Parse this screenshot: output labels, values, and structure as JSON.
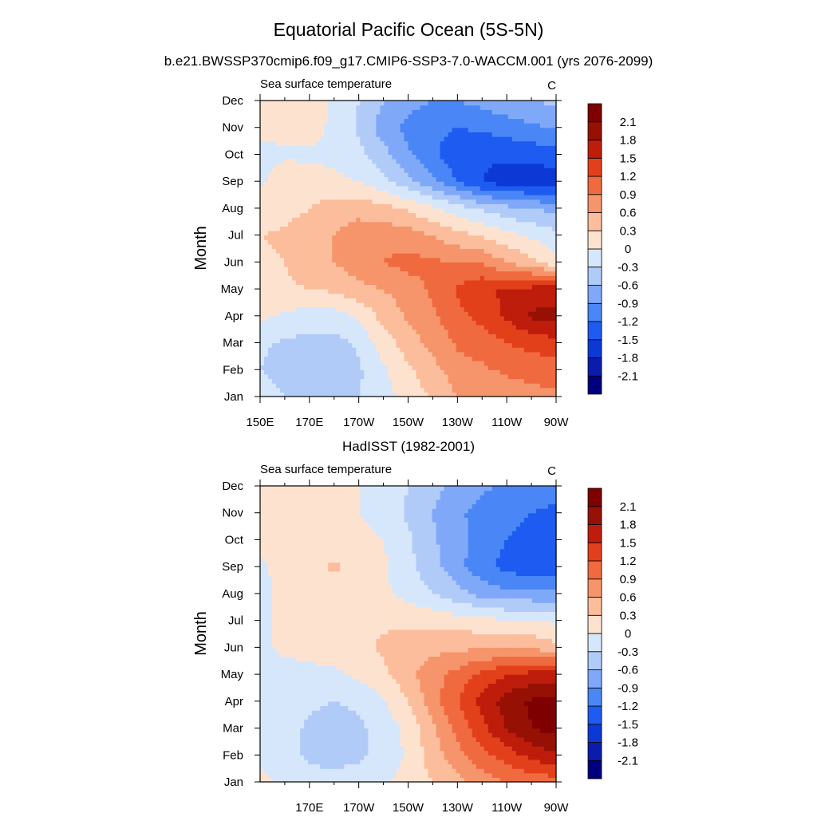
{
  "figure": {
    "title": "Equatorial Pacific Ocean (5S-5N)",
    "subtitle": "b.e21.BWSSP370cmip6.f09_g17.CMIP6-SSP3-7.0-WACCM.001 (yrs 2076-2099)"
  },
  "colormap": {
    "levels": [
      -2.1,
      -1.8,
      -1.5,
      -1.2,
      -0.9,
      -0.6,
      -0.3,
      0,
      0.3,
      0.6,
      0.9,
      1.2,
      1.5,
      1.8,
      2.1
    ],
    "level_labels": [
      "-2.1",
      "-1.8",
      "-1.5",
      "-1.2",
      "-0.9",
      "-0.6",
      "-0.3",
      "0",
      "0.3",
      "0.6",
      "0.9",
      "1.2",
      "1.5",
      "1.8",
      "2.1"
    ],
    "colors": [
      "#00007f",
      "#0a1cae",
      "#0c38d6",
      "#1e5bf0",
      "#4a86f5",
      "#7fa9f8",
      "#b1cbf8",
      "#d6e7fb",
      "#fde3cf",
      "#fbbd9b",
      "#f6946b",
      "#f06a3f",
      "#e2401b",
      "#bd1d0a",
      "#961004",
      "#7f0000"
    ]
  },
  "chart_data": [
    {
      "type": "heatmap",
      "title": "",
      "left_label": "Sea surface temperature",
      "units_label": "C",
      "ylabel": "Month",
      "xlabel": "",
      "x_ticks": [
        "150E",
        "170E",
        "170W",
        "150W",
        "130W",
        "110W",
        "90W"
      ],
      "x_tick_values": [
        150,
        170,
        190,
        210,
        230,
        250,
        270
      ],
      "xlim": [
        150,
        270
      ],
      "y_ticks": [
        "Jan",
        "Feb",
        "Mar",
        "Apr",
        "May",
        "Jun",
        "Jul",
        "Aug",
        "Sep",
        "Oct",
        "Nov",
        "Dec"
      ],
      "ylim": [
        1,
        12
      ],
      "x": [
        150,
        160,
        170,
        180,
        190,
        200,
        210,
        220,
        230,
        240,
        250,
        260,
        270
      ],
      "months": [
        1,
        2,
        3,
        4,
        5,
        6,
        7,
        8,
        9,
        10,
        11,
        12
      ],
      "z": [
        [
          -0.2,
          -0.3,
          -0.4,
          -0.35,
          -0.3,
          -0.1,
          0.1,
          0.35,
          0.6,
          0.7,
          0.75,
          0.8,
          0.85
        ],
        [
          -0.3,
          -0.4,
          -0.45,
          -0.45,
          -0.35,
          -0.05,
          0.25,
          0.5,
          0.75,
          0.85,
          0.95,
          1.0,
          1.05
        ],
        [
          -0.25,
          -0.35,
          -0.4,
          -0.4,
          -0.25,
          0.15,
          0.45,
          0.7,
          0.95,
          1.05,
          1.2,
          1.3,
          1.4
        ],
        [
          0.05,
          -0.05,
          -0.15,
          -0.15,
          0.05,
          0.4,
          0.65,
          0.85,
          1.1,
          1.3,
          1.55,
          1.85,
          1.9
        ],
        [
          0.3,
          0.25,
          0.3,
          0.35,
          0.5,
          0.6,
          0.75,
          0.95,
          1.25,
          1.45,
          1.55,
          1.6,
          1.65
        ],
        [
          0.25,
          0.3,
          0.45,
          0.6,
          0.8,
          0.9,
          1.0,
          0.95,
          0.9,
          0.85,
          0.6,
          0.4,
          0.1
        ],
        [
          0.3,
          0.35,
          0.45,
          0.6,
          0.75,
          0.8,
          0.75,
          0.6,
          0.4,
          0.25,
          0.1,
          -0.05,
          -0.2
        ],
        [
          0.15,
          0.2,
          0.3,
          0.45,
          0.5,
          0.4,
          0.25,
          0.05,
          -0.15,
          -0.35,
          -0.5,
          -0.6,
          -0.7
        ],
        [
          -0.05,
          0.2,
          0.1,
          0.05,
          0.0,
          -0.2,
          -0.5,
          -0.8,
          -1.2,
          -1.5,
          -1.65,
          -1.65,
          -1.7
        ],
        [
          -0.15,
          -0.05,
          -0.05,
          -0.05,
          -0.2,
          -0.5,
          -0.85,
          -1.15,
          -1.4,
          -1.45,
          -1.45,
          -1.4,
          -1.35
        ],
        [
          0.1,
          0.15,
          0.1,
          -0.05,
          -0.35,
          -0.75,
          -1.0,
          -1.1,
          -1.2,
          -1.15,
          -1.05,
          -0.95,
          -0.9
        ],
        [
          0.2,
          0.25,
          0.15,
          -0.05,
          -0.3,
          -0.6,
          -0.8,
          -0.9,
          -0.9,
          -0.8,
          -0.7,
          -0.6,
          -0.55
        ]
      ]
    },
    {
      "type": "heatmap",
      "title": "HadISST (1982-2001)",
      "left_label": "Sea surface temperature",
      "units_label": "C",
      "ylabel": "Month",
      "xlabel": "",
      "x_ticks": [
        "170E",
        "170W",
        "150W",
        "130W",
        "110W",
        "90W"
      ],
      "x_tick_values": [
        170,
        190,
        210,
        230,
        250,
        270
      ],
      "xlim": [
        150,
        270
      ],
      "y_ticks": [
        "Jan",
        "Feb",
        "Mar",
        "Apr",
        "May",
        "Jun",
        "Jul",
        "Aug",
        "Sep",
        "Oct",
        "Nov",
        "Dec"
      ],
      "ylim": [
        1,
        12
      ],
      "x": [
        150,
        160,
        170,
        180,
        190,
        200,
        210,
        220,
        230,
        240,
        250,
        260,
        270
      ],
      "months": [
        1,
        2,
        3,
        4,
        5,
        6,
        7,
        8,
        9,
        10,
        11,
        12
      ],
      "z": [
        [
          0.1,
          -0.1,
          -0.2,
          -0.2,
          -0.15,
          -0.05,
          0.1,
          0.3,
          0.5,
          0.75,
          0.9,
          1.0,
          1.05
        ],
        [
          -0.1,
          -0.2,
          -0.35,
          -0.4,
          -0.35,
          -0.2,
          0.05,
          0.45,
          0.8,
          1.1,
          1.35,
          1.6,
          1.75
        ],
        [
          -0.1,
          -0.2,
          -0.35,
          -0.4,
          -0.35,
          -0.2,
          0.1,
          0.55,
          1.0,
          1.4,
          1.8,
          2.1,
          2.2
        ],
        [
          -0.05,
          -0.15,
          -0.25,
          -0.3,
          -0.25,
          -0.05,
          0.3,
          0.75,
          1.2,
          1.6,
          1.95,
          2.15,
          2.2
        ],
        [
          -0.05,
          -0.1,
          -0.1,
          -0.05,
          0.05,
          0.25,
          0.5,
          0.8,
          1.0,
          1.3,
          1.5,
          1.6,
          1.6
        ],
        [
          -0.05,
          0.05,
          0.1,
          0.15,
          0.2,
          0.35,
          0.45,
          0.5,
          0.55,
          0.55,
          0.6,
          0.55,
          0.4
        ],
        [
          -0.05,
          0.05,
          0.1,
          0.15,
          0.25,
          0.25,
          0.25,
          0.2,
          0.15,
          0.1,
          0.05,
          0.0,
          -0.05
        ],
        [
          -0.1,
          0.1,
          0.15,
          0.15,
          0.15,
          0.05,
          -0.1,
          -0.3,
          -0.5,
          -0.7,
          -0.8,
          -0.8,
          -0.85
        ],
        [
          -0.05,
          0.1,
          0.2,
          0.35,
          0.2,
          0.05,
          -0.2,
          -0.5,
          -0.8,
          -1.1,
          -1.3,
          -1.4,
          -1.45
        ],
        [
          0.05,
          0.1,
          0.15,
          0.15,
          0.15,
          0.0,
          -0.25,
          -0.55,
          -0.8,
          -1.05,
          -1.2,
          -1.3,
          -1.35
        ],
        [
          0.15,
          0.2,
          0.15,
          0.1,
          0.0,
          -0.15,
          -0.35,
          -0.6,
          -0.85,
          -1.0,
          -1.1,
          -1.2,
          -1.25
        ],
        [
          0.2,
          0.2,
          0.15,
          0.1,
          0.0,
          -0.15,
          -0.3,
          -0.5,
          -0.7,
          -0.85,
          -0.95,
          -1.05,
          -1.1
        ]
      ]
    }
  ]
}
